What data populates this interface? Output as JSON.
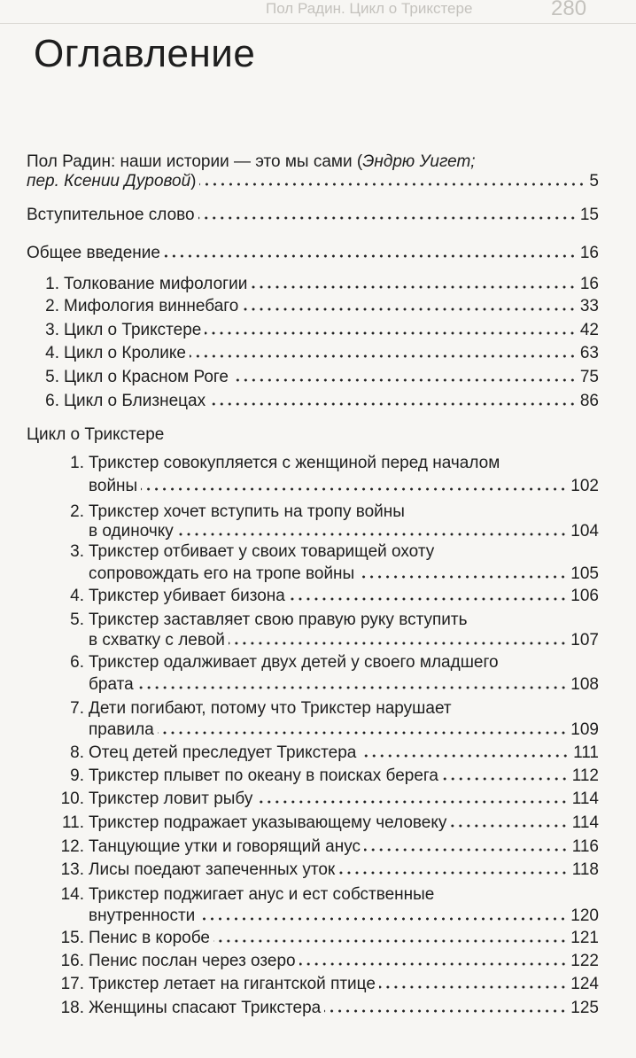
{
  "header": {
    "running_title": "Пол Радин. Цикл о Трикстере",
    "page_number": 280
  },
  "title": "Оглавление",
  "entries": [
    {
      "level": 0,
      "lines": [
        [
          {
            "text": "Пол Радин: наши истории — это мы сами ("
          },
          {
            "text": "Эндрю Уигет;",
            "italic": true
          }
        ],
        [
          {
            "text": "пер. Ксении Дуровой",
            "italic": true
          },
          {
            "text": ")"
          }
        ]
      ],
      "page": 5
    },
    {
      "level": 0,
      "lines": [
        "Вступительное слово"
      ],
      "page": 15
    },
    {
      "level": 0,
      "lines": [
        "Общее введение"
      ],
      "page": 16
    },
    {
      "level": 1,
      "number": "1.",
      "lines": [
        "Толкование мифологии"
      ],
      "page": 16
    },
    {
      "level": 1,
      "number": "2.",
      "lines": [
        "Мифология виннебаго"
      ],
      "page": 33
    },
    {
      "level": 1,
      "number": "3.",
      "lines": [
        "Цикл о Трикстере"
      ],
      "page": 42
    },
    {
      "level": 1,
      "number": "4.",
      "lines": [
        "Цикл о Кролике"
      ],
      "page": 63
    },
    {
      "level": 1,
      "number": "5.",
      "lines": [
        "Цикл о Красном Роге"
      ],
      "page": 75
    },
    {
      "level": 1,
      "number": "6.",
      "lines": [
        "Цикл о Близнецах"
      ],
      "page": 86
    },
    {
      "level": 0,
      "lines": [
        "Цикл о Трикстере"
      ]
    },
    {
      "level": 2,
      "number": "1.",
      "lines": [
        "Трикстер совокупляется с женщиной перед началом",
        "войны"
      ],
      "page": 102
    },
    {
      "level": 2,
      "number": "2.",
      "lines": [
        "Трикстер хочет вступить на тропу войны",
        "в одиночку"
      ],
      "page": 104
    },
    {
      "level": 2,
      "number": "3.",
      "lines": [
        "Трикстер отбивает у своих товарищей охоту",
        "сопровождать его на тропе войны"
      ],
      "page": 105
    },
    {
      "level": 2,
      "number": "4.",
      "lines": [
        "Трикстер убивает бизона"
      ],
      "page": 106
    },
    {
      "level": 2,
      "number": "5.",
      "lines": [
        "Трикстер заставляет свою правую руку вступить",
        "в схватку с левой"
      ],
      "page": 107
    },
    {
      "level": 2,
      "number": "6.",
      "lines": [
        "Трикстер одалживает двух детей у своего младшего",
        "брата"
      ],
      "page": 108
    },
    {
      "level": 2,
      "number": "7.",
      "lines": [
        "Дети погибают, потому что Трикстер нарушает",
        "правила"
      ],
      "page": 109
    },
    {
      "level": 2,
      "number": "8.",
      "lines": [
        "Отец детей преследует Трикстера"
      ],
      "page": 111
    },
    {
      "level": 2,
      "number": "9.",
      "lines": [
        "Трикстер плывет по океану в поисках берега"
      ],
      "page": 112
    },
    {
      "level": 2,
      "number": "10.",
      "lines": [
        "Трикстер ловит рыбу"
      ],
      "page": 114
    },
    {
      "level": 2,
      "number": "11.",
      "lines": [
        "Трикстер подражает указывающему человеку"
      ],
      "page": 114
    },
    {
      "level": 2,
      "number": "12.",
      "lines": [
        "Танцующие утки и говорящий анус"
      ],
      "page": 116
    },
    {
      "level": 2,
      "number": "13.",
      "lines": [
        "Лисы поедают запеченных уток"
      ],
      "page": 118
    },
    {
      "level": 2,
      "number": "14.",
      "lines": [
        "Трикстер поджигает анус и ест собственные",
        "внутренности"
      ],
      "page": 120
    },
    {
      "level": 2,
      "number": "15.",
      "lines": [
        "Пенис в коробе"
      ],
      "page": 121
    },
    {
      "level": 2,
      "number": "16.",
      "lines": [
        "Пенис послан через озеро"
      ],
      "page": 122
    },
    {
      "level": 2,
      "number": "17.",
      "lines": [
        "Трикстер летает на гигантской птице"
      ],
      "page": 124
    },
    {
      "level": 2,
      "number": "18.",
      "lines": [
        "Женщины спасают Трикстера"
      ],
      "page": 125
    }
  ]
}
